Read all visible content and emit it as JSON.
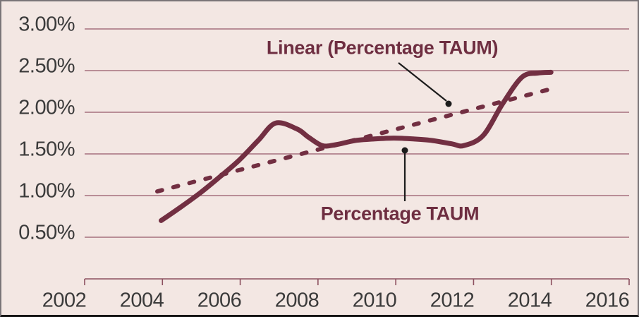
{
  "style": {
    "background": "#f3e7e3",
    "frame_border": "#7a7578",
    "frame_bottom_border": "#141414",
    "series_color": "#722f42",
    "trend_color": "#722f42",
    "grid_color": "#96596a",
    "axis_color": "#8c505f",
    "axis_text_color": "#3b3b3b",
    "annotation_text_color": "#6e2e41",
    "arrow_color": "#1c1c1c"
  },
  "chart_data": {
    "type": "line",
    "title": "",
    "xlabel": "",
    "ylabel": "",
    "xlim": [
      2002,
      2016
    ],
    "ylim": [
      0,
      3.0
    ],
    "grid": "horizontal",
    "legend_position": "none",
    "x_ticks": [
      2002,
      2004,
      2006,
      2008,
      2010,
      2012,
      2014,
      2016
    ],
    "x_tick_labels": [
      "2002",
      "2004",
      "2006",
      "2008",
      "2010",
      "2012",
      "2014",
      "2016"
    ],
    "y_ticks": [
      0.5,
      1.0,
      1.5,
      2.0,
      2.5,
      3.0
    ],
    "y_tick_labels": [
      "0.50%",
      "1.00%",
      "1.50%",
      "2.00%",
      "2.50%",
      "3.00%"
    ],
    "series": [
      {
        "name": "Percentage TAUM",
        "style": "solid",
        "x": [
          2004.5,
          2005,
          2005.5,
          2006,
          2006.5,
          2007,
          2007.45,
          2008,
          2008.3,
          2008.65,
          2009,
          2009.5,
          2010,
          2010.5,
          2011,
          2011.5,
          2012,
          2012.3,
          2012.8,
          2013.3,
          2013.8,
          2014.2,
          2014.55
        ],
        "y": [
          0.7,
          0.86,
          1.03,
          1.22,
          1.42,
          1.66,
          1.87,
          1.8,
          1.7,
          1.6,
          1.61,
          1.66,
          1.68,
          1.69,
          1.68,
          1.66,
          1.62,
          1.6,
          1.72,
          2.1,
          2.42,
          2.47,
          2.48
        ]
      },
      {
        "name": "Linear (Percentage TAUM)",
        "style": "dashed",
        "x": [
          2004.4,
          2014.55
        ],
        "y": [
          1.05,
          2.28
        ]
      }
    ],
    "annotations": [
      {
        "text": "Linear (Percentage TAUM)",
        "target": "trendline"
      },
      {
        "text": "Percentage TAUM",
        "target": "series"
      }
    ]
  }
}
